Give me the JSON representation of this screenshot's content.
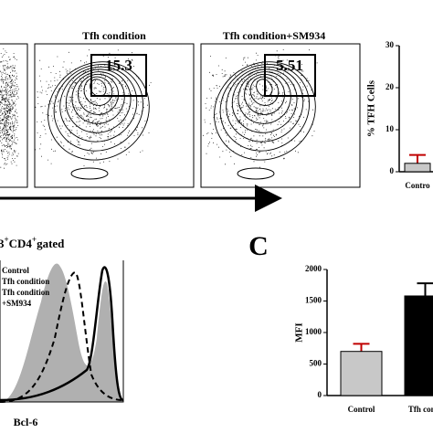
{
  "figure": {
    "plot_titles": [
      "Tfh condition",
      "Tfh condition+SM934"
    ],
    "gate_values": [
      "15.3",
      "5.51"
    ],
    "histogram": {
      "title_parts": [
        "3",
        "+",
        "CD4",
        "+",
        "gated"
      ],
      "legend": [
        "Control",
        "Tfh condition",
        "Tfh condition",
        "+SM934"
      ],
      "xlabel": "Bcl-6"
    },
    "panel_letter": "C"
  },
  "chart_data": [
    {
      "type": "bar",
      "ylabel": "% TFH Cells",
      "categories": [
        "Contro"
      ],
      "values": [
        2
      ],
      "errors": [
        2
      ],
      "color": "#c8c8c8",
      "ylim": [
        0,
        30
      ],
      "yticks": [
        0,
        10,
        20,
        30
      ]
    },
    {
      "type": "bar",
      "ylabel": "MFI",
      "categories": [
        "Control",
        "Tfh condi"
      ],
      "values": [
        700,
        1580
      ],
      "errors": [
        120,
        200
      ],
      "colors": [
        "#c8c8c8",
        "#000000"
      ],
      "ylim": [
        0,
        2000
      ],
      "yticks": [
        0,
        500,
        1000,
        1500,
        2000
      ]
    }
  ]
}
